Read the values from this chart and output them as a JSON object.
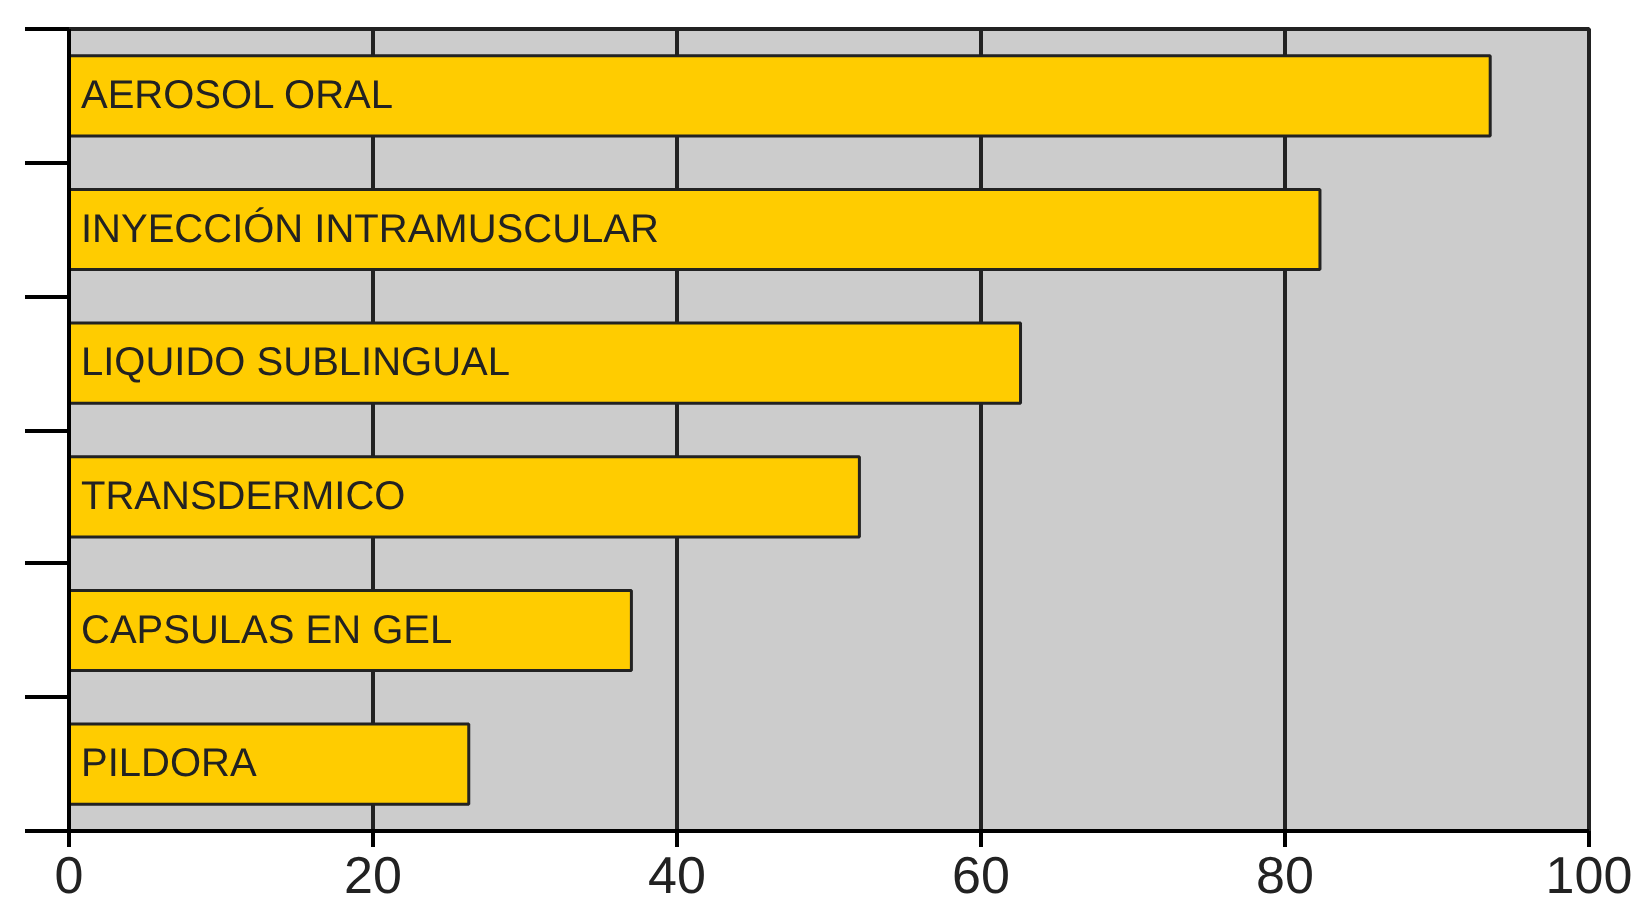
{
  "chart_data": {
    "type": "bar",
    "orientation": "horizontal",
    "categories": [
      "AEROSOL ORAL",
      "INYECCIÓN INTRAMUSCULAR",
      "LIQUIDO SUBLINGUAL",
      "TRANSDERMICO",
      "CAPSULAS EN GEL",
      "PILDORA"
    ],
    "values": [
      93.5,
      82.3,
      62.6,
      52,
      37,
      26.3
    ],
    "color": "#ffcc00",
    "xlim": [
      0,
      100
    ],
    "xticks": [
      0,
      20,
      40,
      60,
      80,
      100
    ],
    "grid": "x"
  }
}
